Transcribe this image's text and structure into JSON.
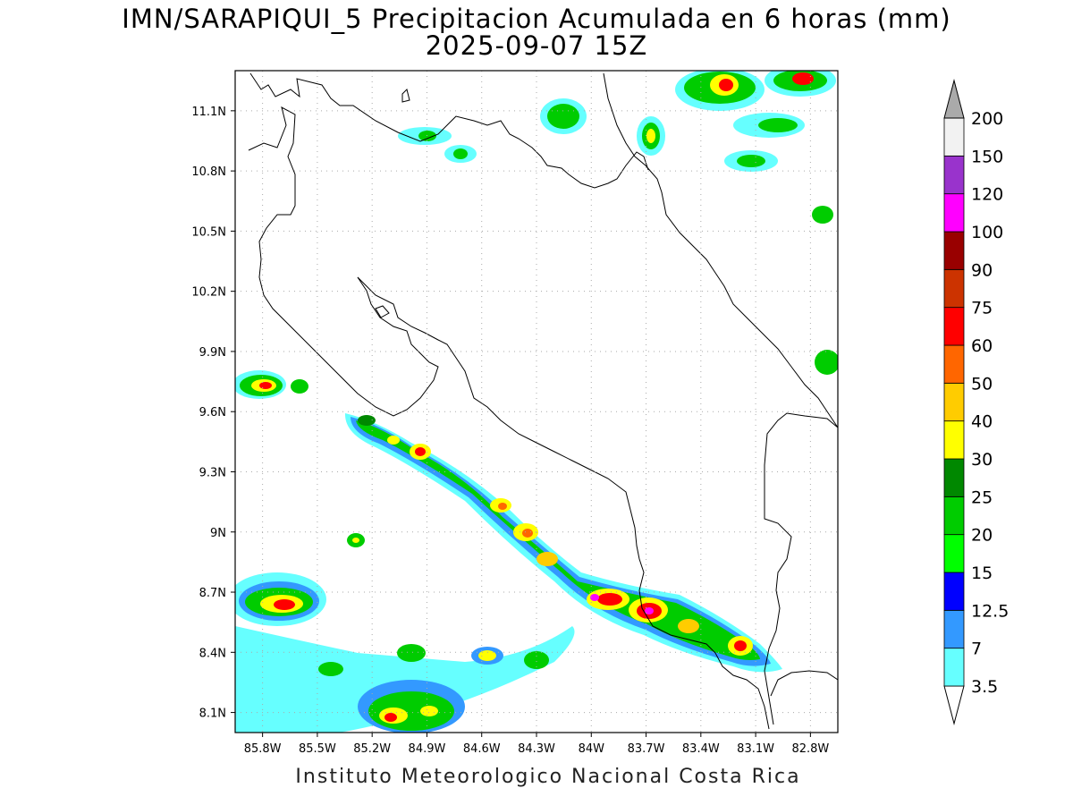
{
  "title": "IMN/SARAPIQUI_5 Precipitacion Acumulada en 6 horas (mm)",
  "subtitle": "2025-09-07 15Z",
  "footer": "Instituto Meteorologico Nacional Costa Rica",
  "axes": {
    "lon_ticks": [
      "85.8W",
      "85.5W",
      "85.2W",
      "84.9W",
      "84.6W",
      "84.3W",
      "84W",
      "83.7W",
      "83.4W",
      "83.1W",
      "82.8W"
    ],
    "lat_ticks": [
      "11.1N",
      "10.8N",
      "10.5N",
      "10.2N",
      "9.9N",
      "9.6N",
      "9.3N",
      "9N",
      "8.7N",
      "8.4N",
      "8.1N"
    ],
    "lon_range": [
      -85.95,
      -82.65
    ],
    "lat_range": [
      8.0,
      11.3
    ],
    "grid": "dotted"
  },
  "legend": {
    "levels": [
      "3.5",
      "7",
      "12.5",
      "15",
      "20",
      "25",
      "30",
      "40",
      "50",
      "60",
      "75",
      "90",
      "100",
      "120",
      "150",
      "200"
    ],
    "colors": [
      "#ffffff",
      "#66ffff",
      "#3399ff",
      "#0000ff",
      "#00ff00",
      "#00cc00",
      "#008800",
      "#ffff00",
      "#ffcc00",
      "#ff6600",
      "#ff0000",
      "#cc3300",
      "#990000",
      "#ff00ff",
      "#9933cc",
      "#f2f2f2"
    ],
    "top_color": "#aaaaaa"
  }
}
